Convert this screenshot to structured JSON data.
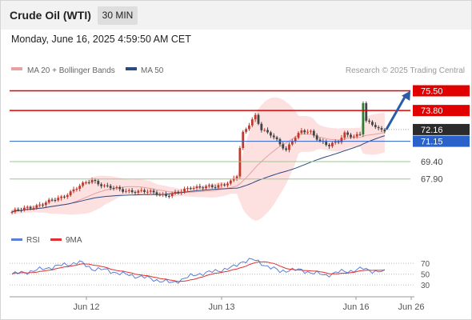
{
  "header": {
    "title": "Crude Oil (WTI)",
    "timeframe": "30 MIN"
  },
  "datetime": "Monday, June 16, 2025 4:59:50 AM CET",
  "legend": {
    "ma20_bb": "MA 20 + Bollinger Bands",
    "ma50": "MA 50",
    "copyright": "Research © 2025 Trading Central",
    "rsi": "RSI",
    "rsi_ma": "9MA"
  },
  "colors": {
    "candle_up": "#c0392b",
    "candle_down": "#444444",
    "bollinger_fill": "#fde0e0",
    "ma20": "#e8a0a0",
    "ma50": "#2c4a80",
    "resistance": "#e00000",
    "pivot": "#2a62c9",
    "support": "#9bc892",
    "last_price": "#2b2b2b",
    "forecast_arrow": "#2a5ca8",
    "rsi_line": "#5a7fd6",
    "rsi_ma_line": "#e23030"
  },
  "chart_data": {
    "type": "candlestick",
    "x_ticks": [
      "Jun 12",
      "Jun 13",
      "Jun 16",
      "Jun 26"
    ],
    "y_range": [
      64.5,
      76.5
    ],
    "levels": [
      {
        "value": 75.5,
        "label": "75.50",
        "kind": "resistance"
      },
      {
        "value": 73.8,
        "label": "73.80",
        "kind": "resistance"
      },
      {
        "value": 72.16,
        "label": "72.16",
        "kind": "last"
      },
      {
        "value": 71.15,
        "label": "71.15",
        "kind": "pivot"
      },
      {
        "value": 69.4,
        "label": "69.40",
        "kind": "support"
      },
      {
        "value": 67.9,
        "label": "67.90",
        "kind": "support"
      }
    ],
    "price_anchors": [
      {
        "i": 0,
        "p": 65.05
      },
      {
        "i": 8,
        "p": 65.6
      },
      {
        "i": 16,
        "p": 66.3
      },
      {
        "i": 22,
        "p": 67.3
      },
      {
        "i": 26,
        "p": 67.8
      },
      {
        "i": 30,
        "p": 67.3
      },
      {
        "i": 36,
        "p": 66.9
      },
      {
        "i": 44,
        "p": 66.8
      },
      {
        "i": 50,
        "p": 66.5
      },
      {
        "i": 54,
        "p": 66.7
      },
      {
        "i": 58,
        "p": 67.2
      },
      {
        "i": 66,
        "p": 67.2
      },
      {
        "i": 71,
        "p": 67.7
      },
      {
        "i": 73,
        "p": 68.2
      },
      {
        "i": 74,
        "p": 70.5
      },
      {
        "i": 75,
        "p": 71.8
      },
      {
        "i": 77,
        "p": 72.6
      },
      {
        "i": 79,
        "p": 73.4
      },
      {
        "i": 81,
        "p": 72.2
      },
      {
        "i": 84,
        "p": 71.7
      },
      {
        "i": 87,
        "p": 70.9
      },
      {
        "i": 89,
        "p": 70.4
      },
      {
        "i": 91,
        "p": 71.3
      },
      {
        "i": 94,
        "p": 72.0
      },
      {
        "i": 97,
        "p": 71.9
      },
      {
        "i": 100,
        "p": 71.2
      },
      {
        "i": 103,
        "p": 70.8
      },
      {
        "i": 106,
        "p": 71.1
      },
      {
        "i": 108,
        "p": 71.8
      },
      {
        "i": 111,
        "p": 71.6
      },
      {
        "i": 113,
        "p": 71.8
      },
      {
        "i": 114,
        "p": 74.5
      },
      {
        "i": 115,
        "p": 72.8
      },
      {
        "i": 117,
        "p": 72.6
      },
      {
        "i": 119,
        "p": 72.2
      },
      {
        "i": 121,
        "p": 72.16
      }
    ],
    "forecast": {
      "from": 72.16,
      "to": 75.5
    },
    "rsi": {
      "ticks": [
        70,
        50,
        30
      ],
      "tick_labels": [
        "70",
        "50",
        "30"
      ],
      "anchors": [
        {
          "i": 0,
          "v": 50
        },
        {
          "i": 6,
          "v": 55
        },
        {
          "i": 12,
          "v": 62
        },
        {
          "i": 18,
          "v": 68
        },
        {
          "i": 22,
          "v": 72
        },
        {
          "i": 26,
          "v": 60
        },
        {
          "i": 30,
          "v": 58
        },
        {
          "i": 36,
          "v": 50
        },
        {
          "i": 42,
          "v": 45
        },
        {
          "i": 48,
          "v": 38
        },
        {
          "i": 52,
          "v": 34
        },
        {
          "i": 56,
          "v": 42
        },
        {
          "i": 60,
          "v": 50
        },
        {
          "i": 64,
          "v": 53
        },
        {
          "i": 68,
          "v": 58
        },
        {
          "i": 72,
          "v": 63
        },
        {
          "i": 75,
          "v": 74
        },
        {
          "i": 78,
          "v": 77
        },
        {
          "i": 81,
          "v": 70
        },
        {
          "i": 84,
          "v": 62
        },
        {
          "i": 87,
          "v": 55
        },
        {
          "i": 90,
          "v": 58
        },
        {
          "i": 94,
          "v": 57
        },
        {
          "i": 98,
          "v": 52
        },
        {
          "i": 102,
          "v": 48
        },
        {
          "i": 106,
          "v": 54
        },
        {
          "i": 110,
          "v": 56
        },
        {
          "i": 114,
          "v": 60
        },
        {
          "i": 118,
          "v": 55
        },
        {
          "i": 121,
          "v": 54
        }
      ]
    }
  }
}
